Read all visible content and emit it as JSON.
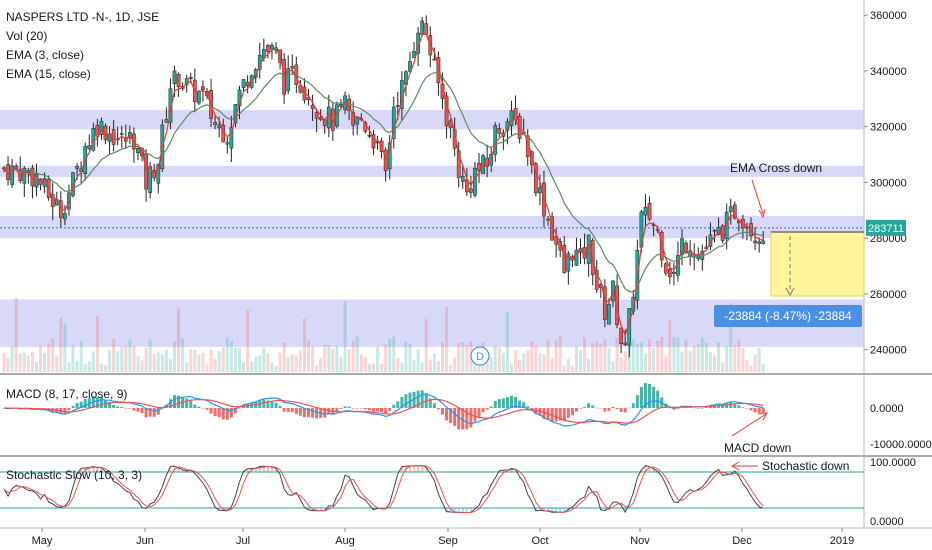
{
  "legend": {
    "symbol": "NASPERS LTD -N-, 1D, JSE",
    "indicators": [
      "Vol (20)",
      "EMA (3, close)",
      "EMA (15, close)"
    ]
  },
  "price_axis": {
    "ticks": [
      "360000",
      "340000",
      "320000",
      "300000",
      "280000",
      "260000",
      "240000"
    ]
  },
  "last_price_label": "283711",
  "measure_label": "-23884 (-8.47%) -23884",
  "dividend_marker": "D",
  "macd": {
    "title": "MACD (8, 17, close, 9)",
    "ticks": [
      "0.0000",
      "-10000.0000"
    ]
  },
  "stochastic": {
    "title": "Stochastic Slow (10, 3, 3)",
    "ticks": [
      "100.0000",
      "0.0000"
    ]
  },
  "time_axis": [
    "May",
    "Jun",
    "Jul",
    "Aug",
    "Sep",
    "Oct",
    "Nov",
    "Dec",
    "2019"
  ],
  "annotations": {
    "ema_cross": "EMA Cross down",
    "macd_down": "MACD down",
    "stochastic_down": "Stochastic down"
  },
  "colors": {
    "up": "#26a69a",
    "down": "#ef5350",
    "zone": "#c8c8f5",
    "ema_fast": "#e53935",
    "ema_slow": "#5d8a5d",
    "measure_box": "#fff59d",
    "badge": "#4a90e2"
  },
  "chart_data": {
    "type": "candlestick",
    "title": "NASPERS LTD -N-, 1D, JSE",
    "ylim": [
      232000,
      364000
    ],
    "zones": [
      [
        319000,
        326000
      ],
      [
        302000,
        306000
      ],
      [
        280000,
        288000
      ],
      [
        241000,
        258000
      ]
    ],
    "last_price": 283711,
    "measure": {
      "from": 282000,
      "to": 258000,
      "change": -23884,
      "percent": "-8.47%"
    },
    "close_path": [
      [
        0,
        305000
      ],
      [
        8,
        304000
      ],
      [
        16,
        302000
      ],
      [
        22,
        295000
      ],
      [
        28,
        290000
      ],
      [
        34,
        300000
      ],
      [
        40,
        313000
      ],
      [
        46,
        321000
      ],
      [
        52,
        318000
      ],
      [
        58,
        315000
      ],
      [
        64,
        316000
      ],
      [
        70,
        300000
      ],
      [
        76,
        308000
      ],
      [
        82,
        335000
      ],
      [
        86,
        338000
      ],
      [
        92,
        333000
      ],
      [
        98,
        331000
      ],
      [
        104,
        321000
      ],
      [
        110,
        318000
      ],
      [
        116,
        332000
      ],
      [
        122,
        342000
      ],
      [
        128,
        348000
      ],
      [
        134,
        346000
      ],
      [
        138,
        336000
      ],
      [
        144,
        338000
      ],
      [
        150,
        332000
      ],
      [
        156,
        325000
      ],
      [
        162,
        322000
      ],
      [
        168,
        327000
      ],
      [
        172,
        320000
      ],
      [
        176,
        323000
      ],
      [
        182,
        316000
      ],
      [
        188,
        303000
      ],
      [
        192,
        328000
      ],
      [
        198,
        337000
      ],
      [
        204,
        357000
      ],
      [
        208,
        354000
      ],
      [
        212,
        340000
      ],
      [
        216,
        330000
      ],
      [
        220,
        318000
      ],
      [
        224,
        305000
      ],
      [
        228,
        296000
      ],
      [
        232,
        304000
      ],
      [
        238,
        306000
      ],
      [
        242,
        318000
      ],
      [
        246,
        322000
      ],
      [
        250,
        322000
      ],
      [
        256,
        318000
      ],
      [
        260,
        305000
      ],
      [
        264,
        296000
      ],
      [
        268,
        287000
      ],
      [
        272,
        278000
      ],
      [
        276,
        268000
      ],
      [
        280,
        276000
      ],
      [
        284,
        272000
      ],
      [
        288,
        278000
      ],
      [
        292,
        263000
      ],
      [
        296,
        254000
      ],
      [
        300,
        261000
      ],
      [
        304,
        244000
      ],
      [
        306,
        239000
      ],
      [
        310,
        262000
      ],
      [
        314,
        287000
      ],
      [
        318,
        288000
      ],
      [
        322,
        282000
      ],
      [
        326,
        271000
      ],
      [
        330,
        267000
      ],
      [
        334,
        278000
      ],
      [
        338,
        279000
      ],
      [
        342,
        274000
      ],
      [
        346,
        277000
      ],
      [
        350,
        280000
      ],
      [
        356,
        285000
      ],
      [
        360,
        290000
      ],
      [
        364,
        288000
      ],
      [
        368,
        284000
      ],
      [
        372,
        281000
      ],
      [
        376,
        284000
      ]
    ]
  }
}
